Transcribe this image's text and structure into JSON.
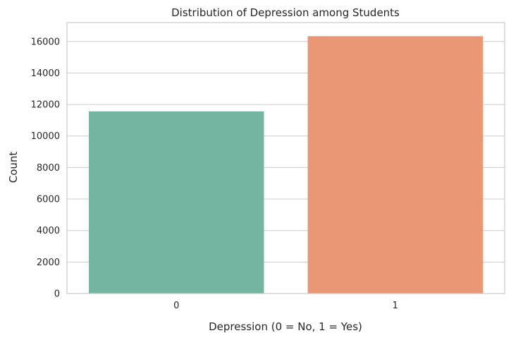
{
  "chart_data": {
    "type": "bar",
    "title": "Distribution of Depression among Students",
    "xlabel": "Depression (0 = No, 1 = Yes)",
    "ylabel": "Count",
    "categories": [
      "0",
      "1"
    ],
    "values": [
      11565,
      16336
    ],
    "ylim": [
      0,
      17200
    ],
    "yticks": [
      0,
      2000,
      4000,
      6000,
      8000,
      10000,
      12000,
      14000,
      16000
    ],
    "grid": "horizontal",
    "colors": [
      "#73b5a0",
      "#e99774"
    ]
  }
}
